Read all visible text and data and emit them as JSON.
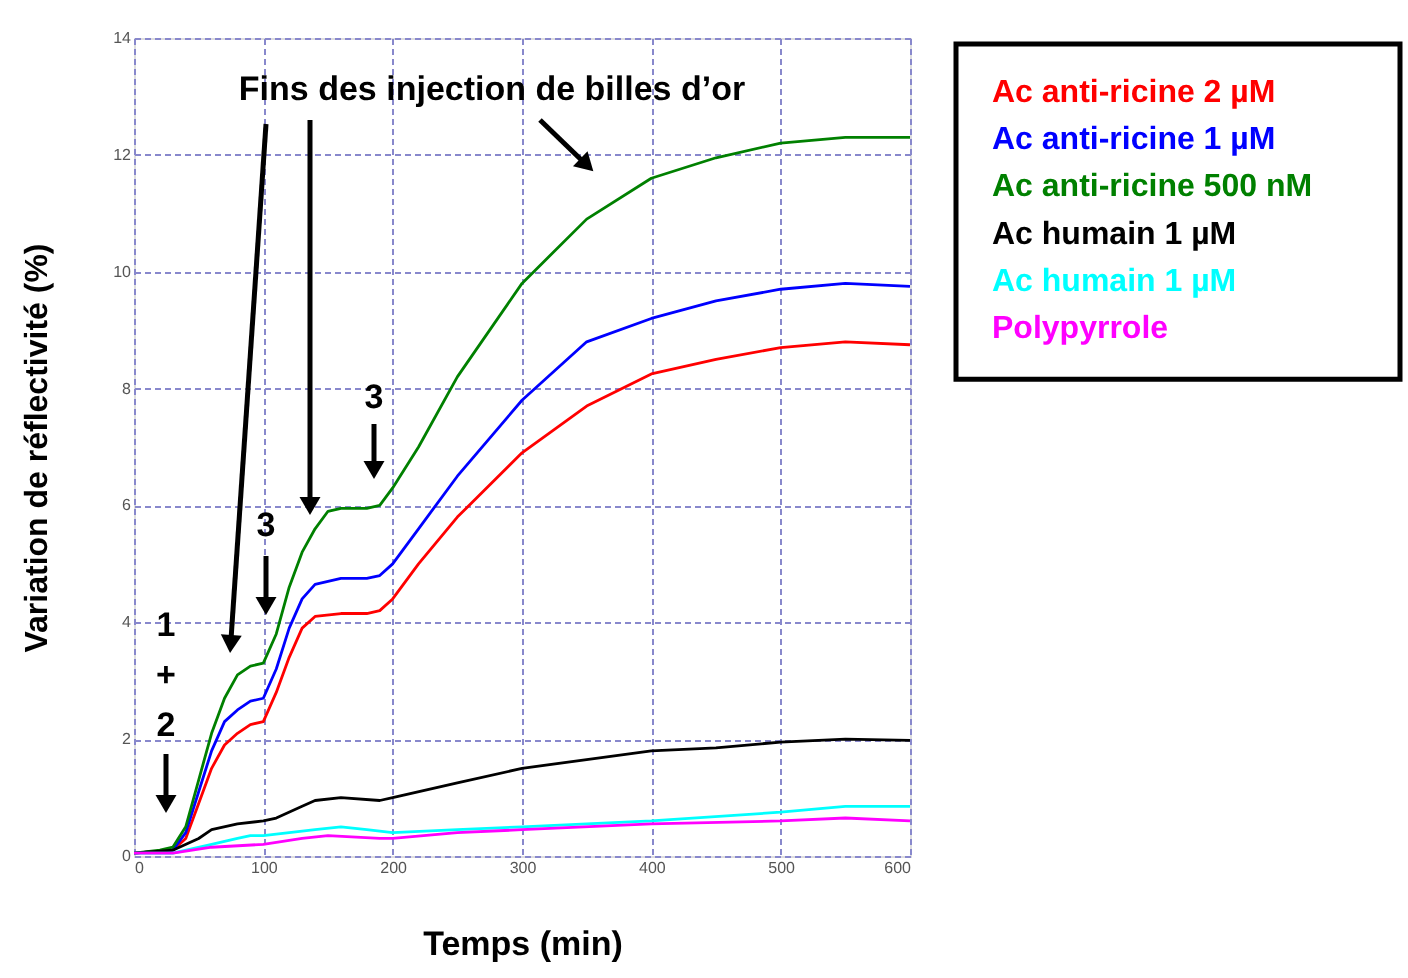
{
  "chart_data": {
    "type": "line",
    "xlabel": "Temps (min)",
    "ylabel": "Variation de réflectivité (%)",
    "xlim": [
      0,
      600
    ],
    "xticks": [
      0,
      100,
      200,
      300,
      400,
      500,
      600
    ],
    "ylim": [
      0,
      14
    ],
    "yticks": [
      0,
      2,
      4,
      6,
      8,
      10,
      12,
      14
    ],
    "grid": true,
    "legend": "right",
    "marker": "none",
    "line_style": "solid",
    "annotations": [
      "Fins des injection de billes d’or",
      "1 + 2",
      "3",
      "3"
    ],
    "series": [
      {
        "name": "Ac anti-ricine 2 µM",
        "color": "#ff0000",
        "x": [
          0,
          30,
          40,
          50,
          60,
          70,
          80,
          90,
          100,
          110,
          120,
          130,
          140,
          160,
          180,
          190,
          200,
          220,
          250,
          300,
          350,
          400,
          450,
          500,
          550,
          600
        ],
        "values": [
          0.05,
          0.1,
          0.3,
          0.9,
          1.5,
          1.9,
          2.1,
          2.25,
          2.3,
          2.8,
          3.4,
          3.9,
          4.1,
          4.15,
          4.15,
          4.2,
          4.4,
          5.0,
          5.8,
          6.9,
          7.7,
          8.25,
          8.5,
          8.7,
          8.8,
          8.75
        ]
      },
      {
        "name": "Ac anti-ricine 1 µM",
        "color": "#0000ff",
        "x": [
          0,
          30,
          40,
          50,
          60,
          70,
          80,
          90,
          100,
          110,
          120,
          130,
          140,
          160,
          180,
          190,
          200,
          220,
          250,
          300,
          350,
          400,
          450,
          500,
          550,
          600
        ],
        "values": [
          0.05,
          0.1,
          0.4,
          1.1,
          1.8,
          2.3,
          2.5,
          2.65,
          2.7,
          3.2,
          3.9,
          4.4,
          4.65,
          4.75,
          4.75,
          4.8,
          5.0,
          5.6,
          6.5,
          7.8,
          8.8,
          9.2,
          9.5,
          9.7,
          9.8,
          9.75
        ]
      },
      {
        "name": "Ac anti-ricine 500 nM",
        "color": "#008000",
        "x": [
          0,
          20,
          30,
          40,
          50,
          60,
          70,
          80,
          90,
          100,
          110,
          120,
          130,
          140,
          150,
          160,
          180,
          190,
          200,
          220,
          250,
          300,
          350,
          400,
          450,
          500,
          550,
          600
        ],
        "values": [
          0.05,
          0.1,
          0.15,
          0.5,
          1.3,
          2.1,
          2.7,
          3.1,
          3.25,
          3.3,
          3.8,
          4.6,
          5.2,
          5.6,
          5.9,
          5.95,
          5.95,
          6.0,
          6.3,
          7.0,
          8.2,
          9.8,
          10.9,
          11.6,
          11.95,
          12.2,
          12.3,
          12.3
        ]
      },
      {
        "name": "Ac humain 1 µM",
        "color": "#000000",
        "x": [
          0,
          30,
          50,
          60,
          80,
          100,
          110,
          130,
          140,
          160,
          190,
          200,
          250,
          300,
          350,
          400,
          450,
          500,
          550,
          600
        ],
        "values": [
          0.05,
          0.1,
          0.3,
          0.45,
          0.55,
          0.6,
          0.65,
          0.85,
          0.95,
          1.0,
          0.95,
          1.0,
          1.25,
          1.5,
          1.65,
          1.8,
          1.85,
          1.95,
          2.0,
          1.98
        ]
      },
      {
        "name": "Ac humain 1 µM",
        "color": "#00ffff",
        "x": [
          0,
          30,
          60,
          80,
          90,
          100,
          120,
          140,
          160,
          180,
          200,
          250,
          300,
          400,
          500,
          550,
          600
        ],
        "values": [
          0.05,
          0.05,
          0.2,
          0.3,
          0.35,
          0.35,
          0.4,
          0.45,
          0.5,
          0.45,
          0.4,
          0.45,
          0.5,
          0.6,
          0.75,
          0.85,
          0.85
        ]
      },
      {
        "name": "Polypyrrole",
        "color": "#ff00ff",
        "x": [
          0,
          30,
          60,
          100,
          130,
          150,
          190,
          200,
          250,
          300,
          400,
          500,
          550,
          600
        ],
        "values": [
          0.05,
          0.05,
          0.15,
          0.2,
          0.3,
          0.35,
          0.3,
          0.3,
          0.4,
          0.45,
          0.55,
          0.6,
          0.65,
          0.6
        ]
      }
    ]
  }
}
